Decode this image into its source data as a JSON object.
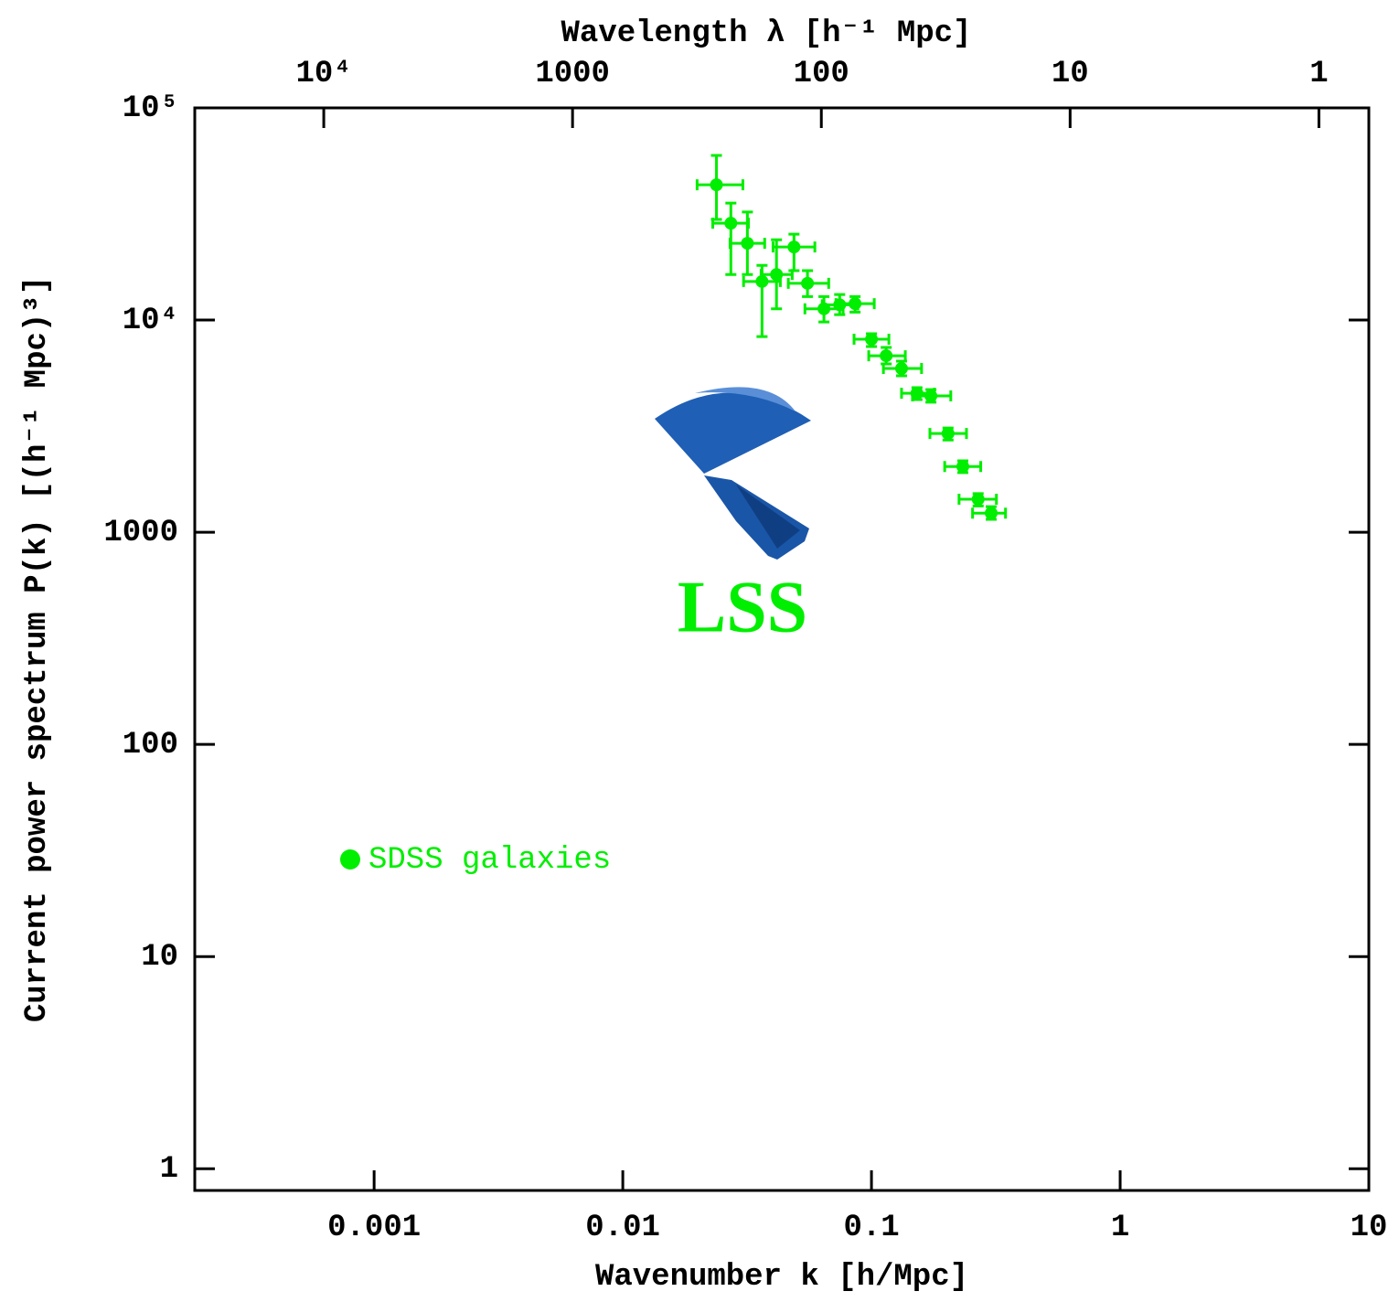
{
  "chart_data": {
    "type": "scatter",
    "xlabel": "Wavenumber k [h/Mpc]",
    "ylabel": "Current power spectrum P(k) [(h⁻¹ Mpc)³]",
    "x2label": "Wavelength λ [h⁻¹ Mpc]",
    "xscale": "log",
    "yscale": "log",
    "x2scale": "log",
    "xlim": [
      0.00019,
      10
    ],
    "ylim": [
      0.79,
      100000
    ],
    "x2lim": [
      33000,
      0.63
    ],
    "xticks": [
      0.001,
      0.01,
      0.1,
      1,
      10
    ],
    "yticks": [
      1,
      10,
      100,
      1000,
      {
        "value": 10000,
        "label": "10⁴"
      },
      {
        "value": 100000,
        "label": "10⁵"
      }
    ],
    "x2ticks": [
      {
        "value": 10000,
        "label": "10⁴"
      },
      1000,
      100,
      10,
      1
    ],
    "legend": "lower left",
    "annotation": "LSS",
    "series": [
      {
        "name": "SDSS galaxies",
        "color": "#00ee00",
        "x": [
          0.0238,
          0.0272,
          0.0317,
          0.0363,
          0.0415,
          0.0488,
          0.0553,
          0.0644,
          0.0745,
          0.0859,
          0.1,
          0.1146,
          0.1321,
          0.1524,
          0.1734,
          0.2032,
          0.233,
          0.2685,
          0.303
        ],
        "x_lo": [
          0.0199,
          0.023,
          0.027,
          0.0306,
          0.036,
          0.0402,
          0.0463,
          0.054,
          0.0634,
          0.072,
          0.0851,
          0.0975,
          0.1117,
          0.1321,
          0.1462,
          0.1718,
          0.197,
          0.225,
          0.255
        ],
        "x_hi": [
          0.0304,
          0.032,
          0.0372,
          0.043,
          0.048,
          0.0592,
          0.0673,
          0.0769,
          0.0881,
          0.1026,
          0.1175,
          0.1368,
          0.159,
          0.179,
          0.2084,
          0.241,
          0.275,
          0.318,
          0.346
        ],
        "values": [
          43400,
          28600,
          23000,
          15200,
          16400,
          22100,
          14900,
          11300,
          11800,
          11950,
          8120,
          6790,
          5910,
          4520,
          4390,
          2920,
          2040,
          1430,
          1230
        ],
        "y_lo": [
          29800,
          16400,
          16400,
          8360,
          11300,
          17100,
          12900,
          9800,
          10600,
          10900,
          7500,
          6210,
          5460,
          4220,
          4100,
          2720,
          1910,
          1330,
          1150
        ],
        "y_hi": [
          59700,
          35600,
          32300,
          18100,
          23900,
          25400,
          17100,
          12900,
          13200,
          12900,
          8620,
          7430,
          6400,
          4800,
          4700,
          3100,
          2170,
          1520,
          1320
        ]
      }
    ]
  }
}
